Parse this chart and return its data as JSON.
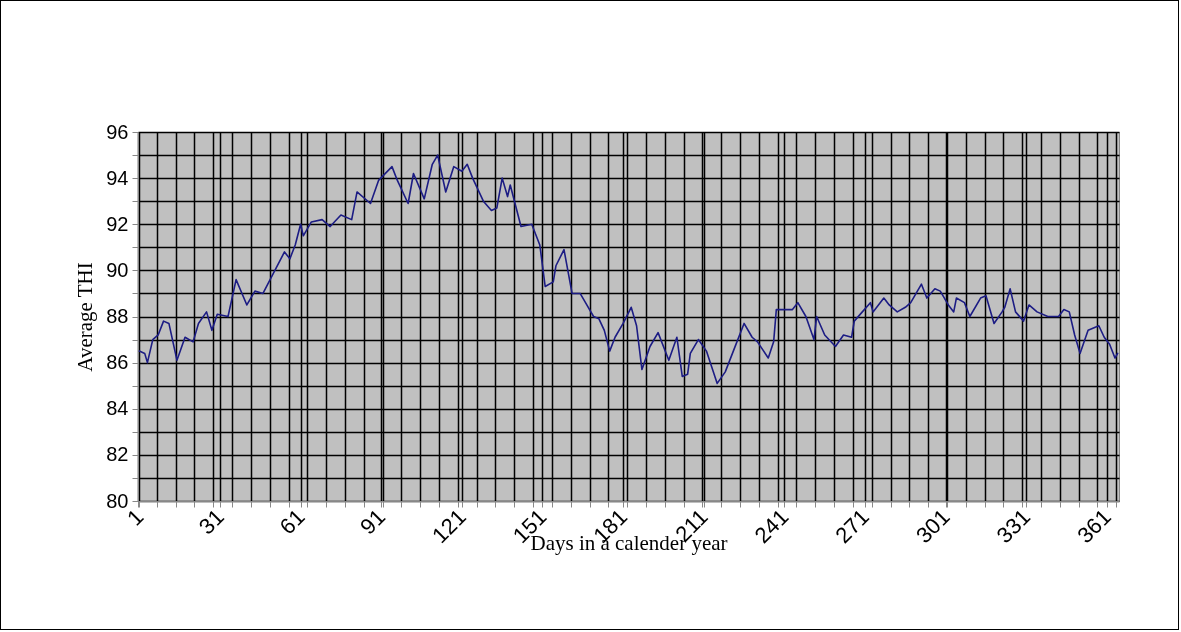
{
  "chart_data": {
    "type": "line",
    "xlabel": "Days in a calender year",
    "ylabel": "Average THI",
    "xlim": [
      0.5,
      365.5
    ],
    "xticks": [
      1,
      31,
      61,
      91,
      121,
      151,
      181,
      211,
      241,
      271,
      301,
      331,
      361,
      {
        "value": 0.5,
        "label": null
      },
      {
        "value": 7.5,
        "label": null
      },
      {
        "value": 14.5,
        "label": null
      },
      {
        "value": 21.5,
        "label": null
      },
      {
        "value": 28.5,
        "label": null
      },
      {
        "value": 35.5,
        "label": null
      },
      {
        "value": 42.5,
        "label": null
      },
      {
        "value": 49.5,
        "label": null
      },
      {
        "value": 56.5,
        "label": null
      },
      {
        "value": 63.5,
        "label": null
      },
      {
        "value": 70.5,
        "label": null
      },
      {
        "value": 77.5,
        "label": null
      },
      {
        "value": 84.5,
        "label": null
      },
      {
        "value": 91.5,
        "label": null
      },
      {
        "value": 98.5,
        "label": null
      },
      {
        "value": 105.5,
        "label": null
      },
      {
        "value": 112.5,
        "label": null
      },
      {
        "value": 119.5,
        "label": null
      },
      {
        "value": 126.5,
        "label": null
      },
      {
        "value": 133.5,
        "label": null
      },
      {
        "value": 140.5,
        "label": null
      },
      {
        "value": 147.5,
        "label": null
      },
      {
        "value": 154.5,
        "label": null
      },
      {
        "value": 161.5,
        "label": null
      },
      {
        "value": 168.5,
        "label": null
      },
      {
        "value": 175.5,
        "label": null
      },
      {
        "value": 182.5,
        "label": null
      },
      {
        "value": 189.5,
        "label": null
      },
      {
        "value": 196.5,
        "label": null
      },
      {
        "value": 203.5,
        "label": null
      },
      {
        "value": 210.5,
        "label": null
      },
      {
        "value": 217.5,
        "label": null
      },
      {
        "value": 224.5,
        "label": null
      },
      {
        "value": 231.5,
        "label": null
      },
      {
        "value": 238.5,
        "label": null
      },
      {
        "value": 245.5,
        "label": null
      },
      {
        "value": 252.5,
        "label": null
      },
      {
        "value": 259.5,
        "label": null
      },
      {
        "value": 266.5,
        "label": null
      },
      {
        "value": 273.5,
        "label": null
      },
      {
        "value": 280.5,
        "label": null
      },
      {
        "value": 287.5,
        "label": null
      },
      {
        "value": 294.5,
        "label": null
      },
      {
        "value": 301.5,
        "label": null
      },
      {
        "value": 308.5,
        "label": null
      },
      {
        "value": 315.5,
        "label": null
      },
      {
        "value": 322.5,
        "label": null
      },
      {
        "value": 329.5,
        "label": null
      },
      {
        "value": 336.5,
        "label": null
      },
      {
        "value": 343.5,
        "label": null
      },
      {
        "value": 350.5,
        "label": null
      },
      {
        "value": 357.5,
        "label": null
      },
      {
        "value": 364.5,
        "label": null
      }
    ],
    "ylim": [
      80,
      96
    ],
    "yticks": [
      80,
      {
        "value": 81,
        "label": null
      },
      82,
      {
        "value": 83,
        "label": null
      },
      84,
      {
        "value": 85,
        "label": null
      },
      86,
      {
        "value": 87,
        "label": null
      },
      88,
      {
        "value": 89,
        "label": null
      },
      90,
      {
        "value": 91,
        "label": null
      },
      92,
      {
        "value": 93,
        "label": null
      },
      94,
      {
        "value": 95,
        "label": null
      },
      96
    ],
    "grid": true,
    "marker": "none",
    "line_style": "solid",
    "series": [
      {
        "color": "#1c1c84",
        "x": [
          1,
          3,
          4,
          6,
          8,
          10,
          12,
          15,
          18,
          21,
          23,
          26,
          28,
          30,
          34,
          37,
          41,
          44,
          47,
          51,
          55,
          57,
          59,
          61,
          62,
          65,
          69,
          72,
          76,
          80,
          82,
          87,
          90,
          95,
          97,
          101,
          103,
          107,
          110,
          112,
          115,
          118,
          121,
          123,
          125,
          129,
          132,
          134,
          136,
          138,
          139,
          143,
          147,
          150,
          152,
          155,
          156,
          159,
          162,
          165,
          167,
          170,
          172,
          174,
          176,
          178,
          181,
          184,
          186,
          188,
          191,
          194,
          198,
          201,
          203,
          205,
          206,
          209,
          212,
          216,
          219,
          222,
          226,
          229,
          231,
          235,
          237,
          238,
          242,
          244,
          246,
          249,
          252,
          253,
          256,
          260,
          263,
          266,
          267,
          270,
          273,
          274,
          278,
          280,
          283,
          286,
          288,
          292,
          294,
          297,
          299,
          302,
          304,
          305,
          308,
          310,
          314,
          316,
          319,
          322,
          323,
          325,
          327,
          330,
          332,
          335,
          339,
          343,
          345,
          347,
          349,
          351,
          354,
          358,
          360,
          362,
          364,
          365
        ],
        "values": [
          86.5,
          86.4,
          86.0,
          87.0,
          87.2,
          87.8,
          87.7,
          86.1,
          87.1,
          86.9,
          87.7,
          88.2,
          87.4,
          88.1,
          88.0,
          89.6,
          88.5,
          89.1,
          89.0,
          89.9,
          90.8,
          90.5,
          91.1,
          92.0,
          91.5,
          92.1,
          92.2,
          91.9,
          92.4,
          92.2,
          93.4,
          92.9,
          93.9,
          94.5,
          93.9,
          92.9,
          94.2,
          93.1,
          94.6,
          95.0,
          93.4,
          94.5,
          94.3,
          94.6,
          94.0,
          93.0,
          92.6,
          92.7,
          94.0,
          93.2,
          93.7,
          91.9,
          92.0,
          91.1,
          89.3,
          89.5,
          90.2,
          90.9,
          89.0,
          89.0,
          88.6,
          88.0,
          87.9,
          87.4,
          86.5,
          87.1,
          87.7,
          88.4,
          87.6,
          85.7,
          86.7,
          87.3,
          86.1,
          87.1,
          85.4,
          85.5,
          86.4,
          87.0,
          86.5,
          85.1,
          85.6,
          86.5,
          87.7,
          87.1,
          86.9,
          86.2,
          86.9,
          88.3,
          88.3,
          88.3,
          88.6,
          88.0,
          87.0,
          88.0,
          87.2,
          86.7,
          87.2,
          87.1,
          87.8,
          88.2,
          88.6,
          88.2,
          88.8,
          88.5,
          88.2,
          88.4,
          88.6,
          89.4,
          88.8,
          89.2,
          89.1,
          88.5,
          88.2,
          88.8,
          88.6,
          88.0,
          88.8,
          88.9,
          87.7,
          88.2,
          88.4,
          89.2,
          88.2,
          87.8,
          88.5,
          88.2,
          88.0,
          88.0,
          88.3,
          88.2,
          87.2,
          86.4,
          87.4,
          87.6,
          87.1,
          86.8,
          86.2,
          86.4
        ]
      }
    ]
  }
}
